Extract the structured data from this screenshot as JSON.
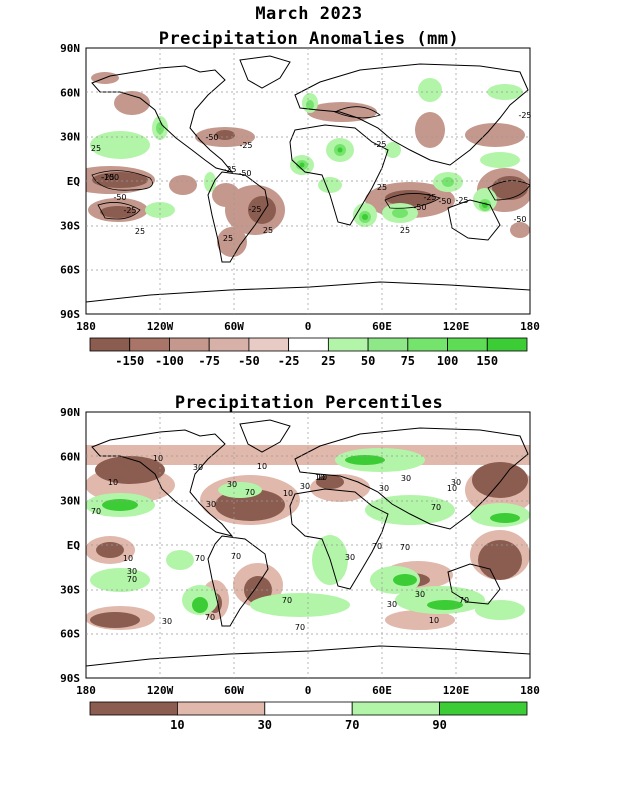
{
  "header": {
    "title": "March 2023",
    "panel1_title": "Precipitation Anomalies (mm)",
    "panel2_title": "Precipitation Percentiles"
  },
  "axes": {
    "lat_labels": [
      "90N",
      "60N",
      "30N",
      "EQ",
      "30S",
      "60S",
      "90S"
    ],
    "lon_labels": [
      "180",
      "120W",
      "60W",
      "0",
      "60E",
      "120E",
      "180"
    ]
  },
  "anomaly_colorbar": {
    "colors": [
      "#8b5d50",
      "#a87568",
      "#c4988c",
      "#d7b1a8",
      "#e8cbc4",
      "#ffffff",
      "#b2f5a8",
      "#8ee887",
      "#74e46c",
      "#5fdc55",
      "#3ccc35"
    ],
    "labels": [
      "-150",
      "-100",
      "-75",
      "-50",
      "-25",
      "25",
      "50",
      "75",
      "100",
      "150"
    ]
  },
  "percentile_colorbar": {
    "colors": [
      "#8b5d50",
      "#e0b8ac",
      "#ffffff",
      "#b2f5a8",
      "#3ccc35"
    ],
    "labels": [
      "10",
      "30",
      "70",
      "90"
    ]
  },
  "anomaly_contour_labels": [
    "25",
    "-25",
    "-100",
    "-50",
    "-25",
    "25",
    "-25",
    "-50",
    "-25",
    "25",
    "-25",
    "-50",
    "25",
    "-25",
    "-25",
    "-50",
    "-25",
    "25",
    "-50",
    "25",
    "-25",
    "-50"
  ],
  "percentile_contour_labels": [
    "10",
    "30",
    "10",
    "30",
    "10",
    "70",
    "70",
    "10",
    "30",
    "10",
    "30",
    "30",
    "10",
    "70",
    "30",
    "70",
    "70",
    "10",
    "70",
    "30",
    "70",
    "70",
    "70",
    "30",
    "70",
    "30",
    "10",
    "30",
    "70",
    "10",
    "30",
    "30",
    "70"
  ],
  "colors": {
    "dry_strong": "#8b5d50",
    "dry_moderate": "#c4988c",
    "dry_light": "#e0b8ac",
    "wet_light": "#b2f5a8",
    "wet_strong": "#3ccc35"
  }
}
